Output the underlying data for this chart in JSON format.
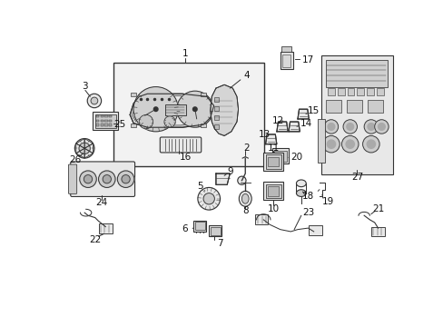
{
  "bg_color": "#ffffff",
  "light_gray": "#e8e8e8",
  "mid_gray": "#cccccc",
  "dark_gray": "#888888",
  "line_color": "#333333",
  "label_color": "#111111",
  "figsize": [
    4.89,
    3.6
  ],
  "dpi": 100
}
